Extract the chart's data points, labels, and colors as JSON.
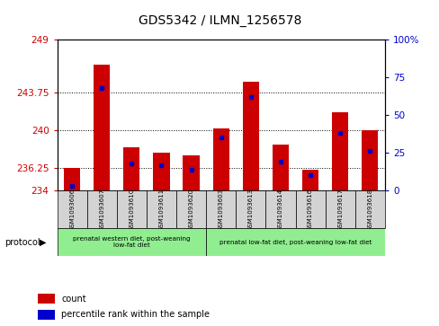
{
  "title": "GDS5342 / ILMN_1256578",
  "samples": [
    "GSM1093606",
    "GSM1093607",
    "GSM1093610",
    "GSM1093611",
    "GSM1093620",
    "GSM1093603",
    "GSM1093613",
    "GSM1093614",
    "GSM1093616",
    "GSM1093617",
    "GSM1093618"
  ],
  "red_values": [
    236.25,
    246.5,
    238.3,
    237.8,
    237.5,
    240.2,
    244.8,
    238.6,
    236.1,
    241.8,
    240.0
  ],
  "blue_values": [
    3,
    68,
    18,
    17,
    14,
    35,
    62,
    19,
    10,
    38,
    26
  ],
  "ymin": 234,
  "ymax": 249,
  "yticks_left": [
    234,
    236.25,
    240,
    243.75,
    249
  ],
  "yticks_right": [
    0,
    25,
    50,
    75,
    100
  ],
  "group1_count": 5,
  "group2_count": 6,
  "group1_label": "prenatal western diet, post-weaning\nlow-fat diet",
  "group2_label": "prenatal low-fat diet, post-weaning low-fat diet",
  "group_bg_color": "#90EE90",
  "bar_color": "#CC0000",
  "marker_color": "#0000CC",
  "bar_width": 0.55,
  "title_fontsize": 10,
  "tick_fontsize": 7.5,
  "sample_box_color": "#d3d3d3"
}
